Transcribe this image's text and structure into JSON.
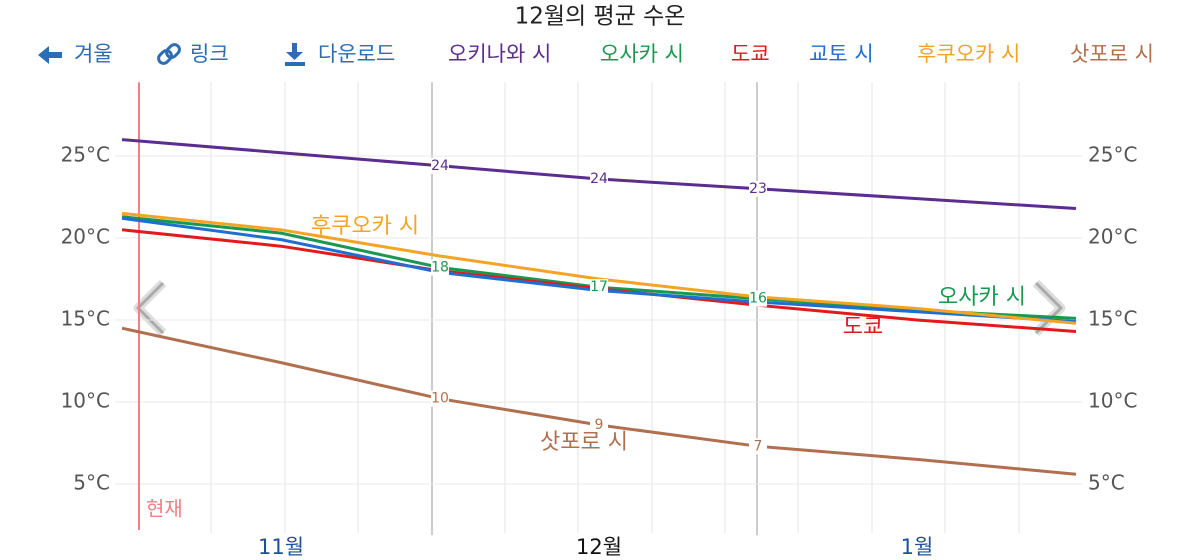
{
  "toolbar": {
    "back": "겨울",
    "link": "링크",
    "download": "다운로드"
  },
  "now_label": "현재",
  "chart_data": {
    "type": "line",
    "title": "12월의 평균 수온",
    "categories": [
      null,
      "11월",
      null,
      "12월",
      null,
      "1월",
      null
    ],
    "ylim": [
      2,
      29.5
    ],
    "yticks": [
      {
        "value": 5,
        "label": "5°C"
      },
      {
        "value": 10,
        "label": "10°C"
      },
      {
        "value": 15,
        "label": "15°C"
      },
      {
        "value": 20,
        "label": "20°C"
      },
      {
        "value": 25,
        "label": "25°C"
      }
    ],
    "grid": true,
    "series": [
      {
        "name": "오키나와 시",
        "color": "#5b2d8e",
        "values": [
          26.0,
          25.2,
          24.4,
          23.6,
          23.0,
          22.4,
          21.8
        ],
        "value_labels": [
          null,
          null,
          "24",
          "24",
          "23",
          null,
          null
        ]
      },
      {
        "name": "오사카 시",
        "color": "#1a9850",
        "values": [
          21.3,
          20.3,
          18.2,
          17.0,
          16.3,
          15.6,
          15.1
        ],
        "value_labels": [
          null,
          null,
          "18",
          "17",
          "16",
          null,
          null
        ]
      },
      {
        "name": "도쿄",
        "color": "#e31a1c",
        "values": [
          20.5,
          19.5,
          18.0,
          16.9,
          15.9,
          15.0,
          14.3
        ]
      },
      {
        "name": "교토 시",
        "color": "#1f6fd0",
        "values": [
          21.2,
          19.9,
          17.9,
          16.8,
          16.1,
          15.5,
          14.9
        ]
      },
      {
        "name": "후쿠오카 시",
        "color": "#f4a424",
        "values": [
          21.5,
          20.5,
          18.9,
          17.5,
          16.4,
          15.7,
          14.8
        ]
      },
      {
        "name": "삿포로 시",
        "color": "#b0704f",
        "values": [
          14.5,
          12.4,
          10.2,
          8.6,
          7.3,
          6.5,
          5.6
        ],
        "value_labels": [
          null,
          null,
          "10",
          "9",
          "7",
          null,
          null
        ]
      }
    ]
  }
}
